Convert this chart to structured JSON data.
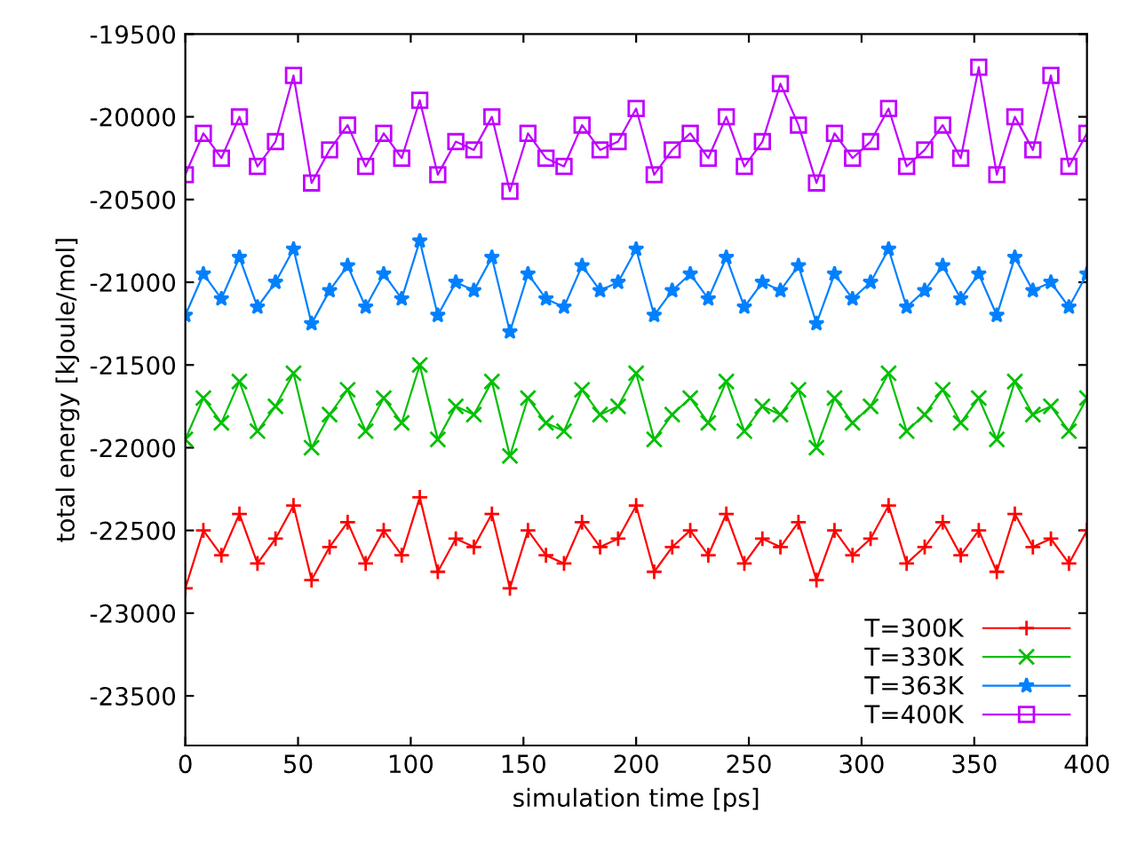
{
  "chart_data": {
    "type": "line",
    "xlabel": "simulation time [ps]",
    "ylabel": "total energy [kJoule/mol]",
    "x": [
      0,
      8,
      16,
      24,
      32,
      40,
      48,
      56,
      64,
      72,
      80,
      88,
      96,
      104,
      112,
      120,
      128,
      136,
      144,
      152,
      160,
      168,
      176,
      184,
      192,
      200,
      208,
      216,
      224,
      232,
      240,
      248,
      256,
      264,
      272,
      280,
      288,
      296,
      304,
      312,
      320,
      328,
      336,
      344,
      352,
      360,
      368,
      376,
      384,
      392,
      400
    ],
    "xlim": [
      0,
      400
    ],
    "xticks": [
      0,
      50,
      100,
      150,
      200,
      250,
      300,
      350,
      400
    ],
    "ylim": [
      -23800,
      -19500
    ],
    "yticks": [
      -23500,
      -23000,
      -22500,
      -22000,
      -21500,
      -21000,
      -20500,
      -20000,
      -19500
    ],
    "grid": false,
    "legend": "bottom right",
    "line_style": "solid",
    "series": [
      {
        "name": "T=300K",
        "color": "#ff0000",
        "marker": "plus",
        "values": [
          -22850,
          -22500,
          -22650,
          -22400,
          -22700,
          -22550,
          -22350,
          -22800,
          -22600,
          -22450,
          -22700,
          -22500,
          -22650,
          -22300,
          -22750,
          -22550,
          -22600,
          -22400,
          -22850,
          -22500,
          -22650,
          -22700,
          -22450,
          -22600,
          -22550,
          -22350,
          -22750,
          -22600,
          -22500,
          -22650,
          -22400,
          -22700,
          -22550,
          -22600,
          -22450,
          -22800,
          -22500,
          -22650,
          -22550,
          -22350,
          -22700,
          -22600,
          -22450,
          -22650,
          -22500,
          -22750,
          -22400,
          -22600,
          -22550,
          -22700,
          -22500
        ]
      },
      {
        "name": "T=330K",
        "color": "#00c000",
        "marker": "cross",
        "values": [
          -21950,
          -21700,
          -21850,
          -21600,
          -21900,
          -21750,
          -21550,
          -22000,
          -21800,
          -21650,
          -21900,
          -21700,
          -21850,
          -21500,
          -21950,
          -21750,
          -21800,
          -21600,
          -22050,
          -21700,
          -21850,
          -21900,
          -21650,
          -21800,
          -21750,
          -21550,
          -21950,
          -21800,
          -21700,
          -21850,
          -21600,
          -21900,
          -21750,
          -21800,
          -21650,
          -22000,
          -21700,
          -21850,
          -21750,
          -21550,
          -21900,
          -21800,
          -21650,
          -21850,
          -21700,
          -21950,
          -21600,
          -21800,
          -21750,
          -21900,
          -21700
        ]
      },
      {
        "name": "T=363K",
        "color": "#0080ff",
        "marker": "star",
        "values": [
          -21200,
          -20950,
          -21100,
          -20850,
          -21150,
          -21000,
          -20800,
          -21250,
          -21050,
          -20900,
          -21150,
          -20950,
          -21100,
          -20750,
          -21200,
          -21000,
          -21050,
          -20850,
          -21300,
          -20950,
          -21100,
          -21150,
          -20900,
          -21050,
          -21000,
          -20800,
          -21200,
          -21050,
          -20950,
          -21100,
          -20850,
          -21150,
          -21000,
          -21050,
          -20900,
          -21250,
          -20950,
          -21100,
          -21000,
          -20800,
          -21150,
          -21050,
          -20900,
          -21100,
          -20950,
          -21200,
          -20850,
          -21050,
          -21000,
          -21150,
          -20950
        ]
      },
      {
        "name": "T=400K",
        "color": "#c000ff",
        "marker": "square",
        "values": [
          -20350,
          -20100,
          -20250,
          -20000,
          -20300,
          -20150,
          -19750,
          -20400,
          -20200,
          -20050,
          -20300,
          -20100,
          -20250,
          -19900,
          -20350,
          -20150,
          -20200,
          -20000,
          -20450,
          -20100,
          -20250,
          -20300,
          -20050,
          -20200,
          -20150,
          -19950,
          -20350,
          -20200,
          -20100,
          -20250,
          -20000,
          -20300,
          -20150,
          -19800,
          -20050,
          -20400,
          -20100,
          -20250,
          -20150,
          -19950,
          -20300,
          -20200,
          -20050,
          -20250,
          -19700,
          -20350,
          -20000,
          -20200,
          -19750,
          -20300,
          -20100
        ]
      }
    ]
  }
}
